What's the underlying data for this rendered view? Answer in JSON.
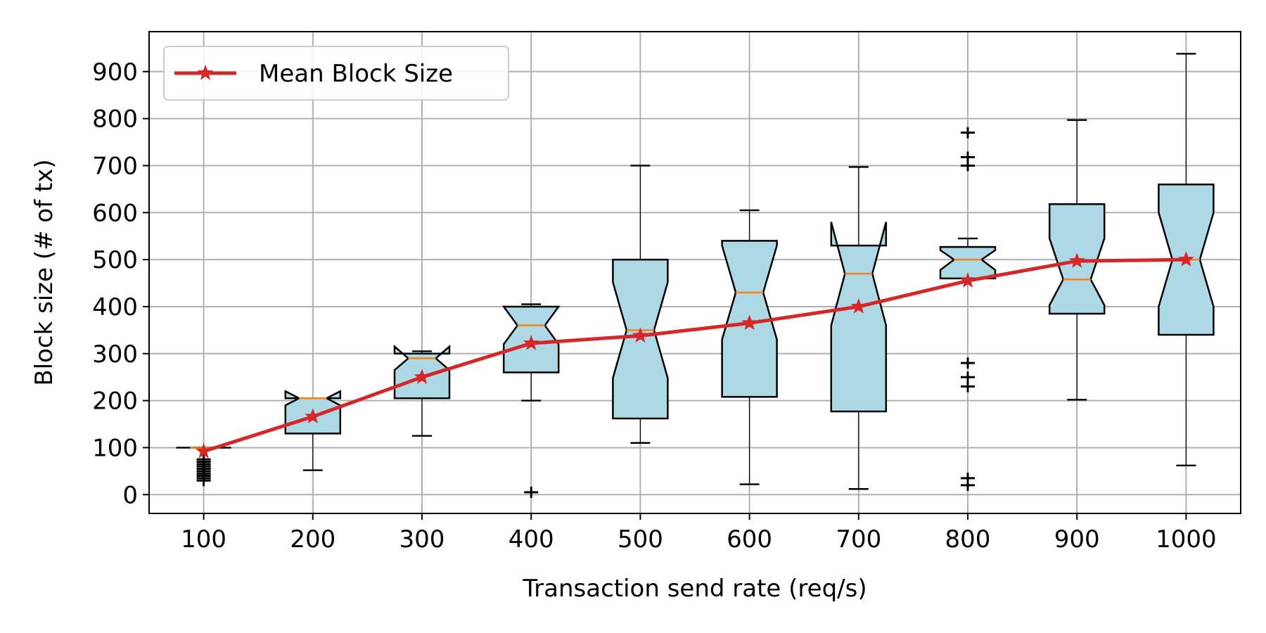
{
  "chart_data": {
    "type": "box",
    "xlabel": "Transaction send rate (req/s)",
    "ylabel": "Block size (# of tx)",
    "xlim": [
      50,
      1050
    ],
    "ylim": [
      -40,
      985
    ],
    "xticks": [
      100,
      200,
      300,
      400,
      500,
      600,
      700,
      800,
      900,
      1000
    ],
    "yticks": [
      0,
      100,
      200,
      300,
      400,
      500,
      600,
      700,
      800,
      900
    ],
    "grid": true,
    "legend": {
      "position": "top-left",
      "entries": [
        "Mean Block Size"
      ]
    },
    "colors": {
      "box_fill": "#add8e6",
      "median": "#ff7f0e",
      "mean_line": "#d62728",
      "grid": "#b0b0b0"
    },
    "boxes": [
      {
        "x": 100,
        "q1": 100,
        "median": 100,
        "q3": 100,
        "notch_low": 100,
        "notch_high": 100,
        "whisker_low": 100,
        "whisker_high": 100,
        "fliers": [
          30,
          35,
          40,
          45,
          50,
          55,
          60,
          65,
          70,
          75
        ]
      },
      {
        "x": 200,
        "q1": 130,
        "median": 205,
        "q3": 205,
        "notch_low": 190,
        "notch_high": 220,
        "whisker_low": 52,
        "whisker_high": 205,
        "fliers": []
      },
      {
        "x": 300,
        "q1": 205,
        "median": 290,
        "q3": 300,
        "notch_low": 265,
        "notch_high": 315,
        "whisker_low": 125,
        "whisker_high": 305,
        "fliers": []
      },
      {
        "x": 400,
        "q1": 260,
        "median": 360,
        "q3": 400,
        "notch_low": 320,
        "notch_high": 400,
        "whisker_low": 200,
        "whisker_high": 405,
        "fliers": [
          5
        ]
      },
      {
        "x": 500,
        "q1": 162,
        "median": 350,
        "q3": 500,
        "notch_low": 248,
        "notch_high": 452,
        "whisker_low": 110,
        "whisker_high": 700,
        "fliers": []
      },
      {
        "x": 600,
        "q1": 208,
        "median": 430,
        "q3": 540,
        "notch_low": 330,
        "notch_high": 530,
        "whisker_low": 22,
        "whisker_high": 605,
        "fliers": []
      },
      {
        "x": 700,
        "q1": 177,
        "median": 470,
        "q3": 530,
        "notch_low": 360,
        "notch_high": 580,
        "whisker_low": 12,
        "whisker_high": 697,
        "fliers": []
      },
      {
        "x": 800,
        "q1": 460,
        "median": 500,
        "q3": 527,
        "notch_low": 478,
        "notch_high": 520,
        "whisker_low": 460,
        "whisker_high": 545,
        "fliers": [
          20,
          35,
          230,
          250,
          280,
          700,
          718,
          770
        ]
      },
      {
        "x": 900,
        "q1": 385,
        "median": 458,
        "q3": 618,
        "notch_low": 403,
        "notch_high": 545,
        "whisker_low": 202,
        "whisker_high": 797,
        "fliers": []
      },
      {
        "x": 1000,
        "q1": 340,
        "median": 500,
        "q3": 660,
        "notch_low": 400,
        "notch_high": 600,
        "whisker_low": 62,
        "whisker_high": 938,
        "fliers": []
      }
    ],
    "series": [
      {
        "name": "Mean Block Size",
        "x": [
          100,
          200,
          300,
          400,
          500,
          600,
          700,
          800,
          900,
          1000
        ],
        "values": [
          92,
          166,
          250,
          322,
          338,
          365,
          400,
          455,
          497,
          500
        ]
      }
    ]
  }
}
